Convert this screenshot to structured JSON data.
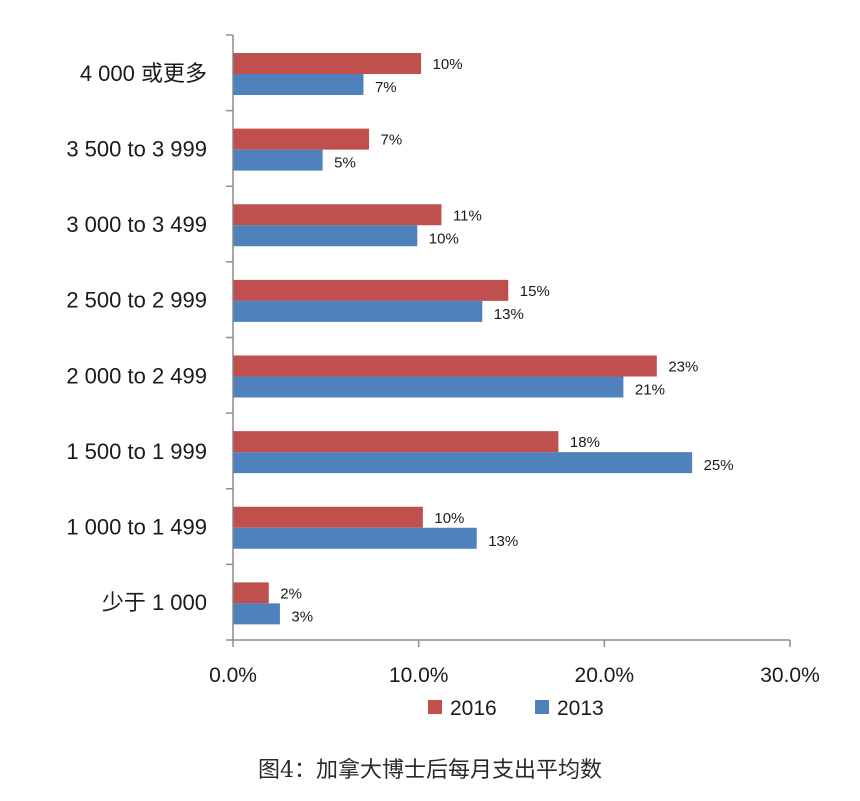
{
  "caption": "图4：加拿大博士后每月支出平均数",
  "chart_data": {
    "type": "bar",
    "orientation": "horizontal",
    "categories": [
      "4 000  或更多",
      "3 500 to 3 999",
      "3 000 to 3 499",
      "2 500 to 2 999",
      "2 000 to 2 499",
      "1 500 to 1 999",
      "1 000 to 1 499",
      "少于 1 000"
    ],
    "series": [
      {
        "name": "2016",
        "color": "#c0504d",
        "values": [
          10,
          7,
          11,
          15,
          23,
          18,
          10,
          2
        ],
        "labels": [
          "10%",
          "7%",
          "11%",
          "15%",
          "23%",
          "18%",
          "10%",
          "2%"
        ]
      },
      {
        "name": "2013",
        "color": "#4f81bd",
        "values": [
          7,
          5,
          10,
          13,
          21,
          25,
          13,
          3
        ],
        "labels": [
          "7%",
          "5%",
          "10%",
          "13%",
          "21%",
          "25%",
          "13%",
          "3%"
        ]
      }
    ],
    "bar_values_plotted": {
      "2016": [
        10.1,
        7.3,
        11.2,
        14.8,
        22.8,
        17.5,
        10.2,
        1.9
      ],
      "2013": [
        7.0,
        4.8,
        9.9,
        13.4,
        21.0,
        24.7,
        13.1,
        2.5
      ]
    },
    "xlim": [
      0,
      30
    ],
    "xticks": [
      "0.0%",
      "10.0%",
      "20.0%",
      "30.0%"
    ],
    "xlabel": "",
    "ylabel": "",
    "grid": false,
    "legend_position": "bottom"
  }
}
